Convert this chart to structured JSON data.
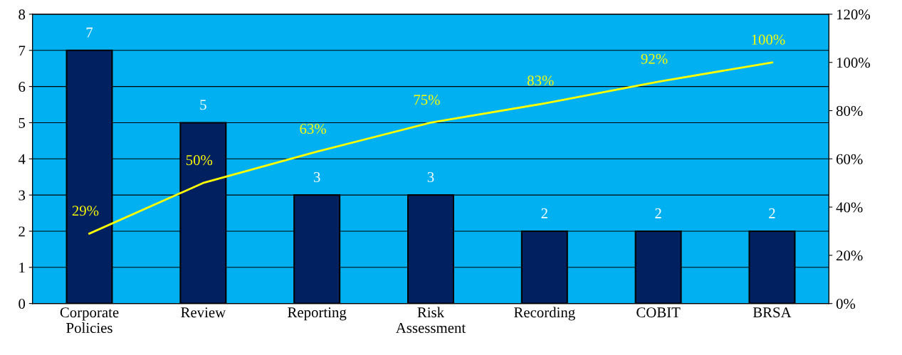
{
  "chart_data": {
    "type": "bar",
    "categories": [
      "Corporate\nPolicies",
      "Review",
      "Reporting",
      "Risk\nAssessment",
      "Recording",
      "COBIT",
      "BRSA"
    ],
    "series": [
      {
        "color": "#002060",
        "values": [
          7,
          5,
          3,
          3,
          2,
          2,
          2
        ],
        "value_labels": [
          "7",
          "5",
          "3",
          "3",
          "2",
          "2",
          "2"
        ]
      },
      {
        "type": "line",
        "axis": "y2",
        "color": "#ffff00",
        "values": [
          29,
          50,
          63,
          75,
          83,
          92,
          100
        ],
        "value_labels": [
          "29%",
          "50%",
          "63%",
          "75%",
          "83%",
          "92%",
          "100%"
        ]
      }
    ],
    "ylim": [
      0,
      8
    ],
    "yticks": [
      0,
      1,
      2,
      3,
      4,
      5,
      6,
      7,
      8
    ],
    "y2lim": [
      0,
      120
    ],
    "y2ticks": [
      {
        "value": 0,
        "label": "0%"
      },
      {
        "value": 20,
        "label": "20%"
      },
      {
        "value": 40,
        "label": "40%"
      },
      {
        "value": 60,
        "label": "60%"
      },
      {
        "value": 80,
        "label": "80%"
      },
      {
        "value": 100,
        "label": "100%"
      },
      {
        "value": 120,
        "label": "120%"
      }
    ],
    "grid": "y",
    "legend": false,
    "marker": "none",
    "line_style": "solid"
  }
}
